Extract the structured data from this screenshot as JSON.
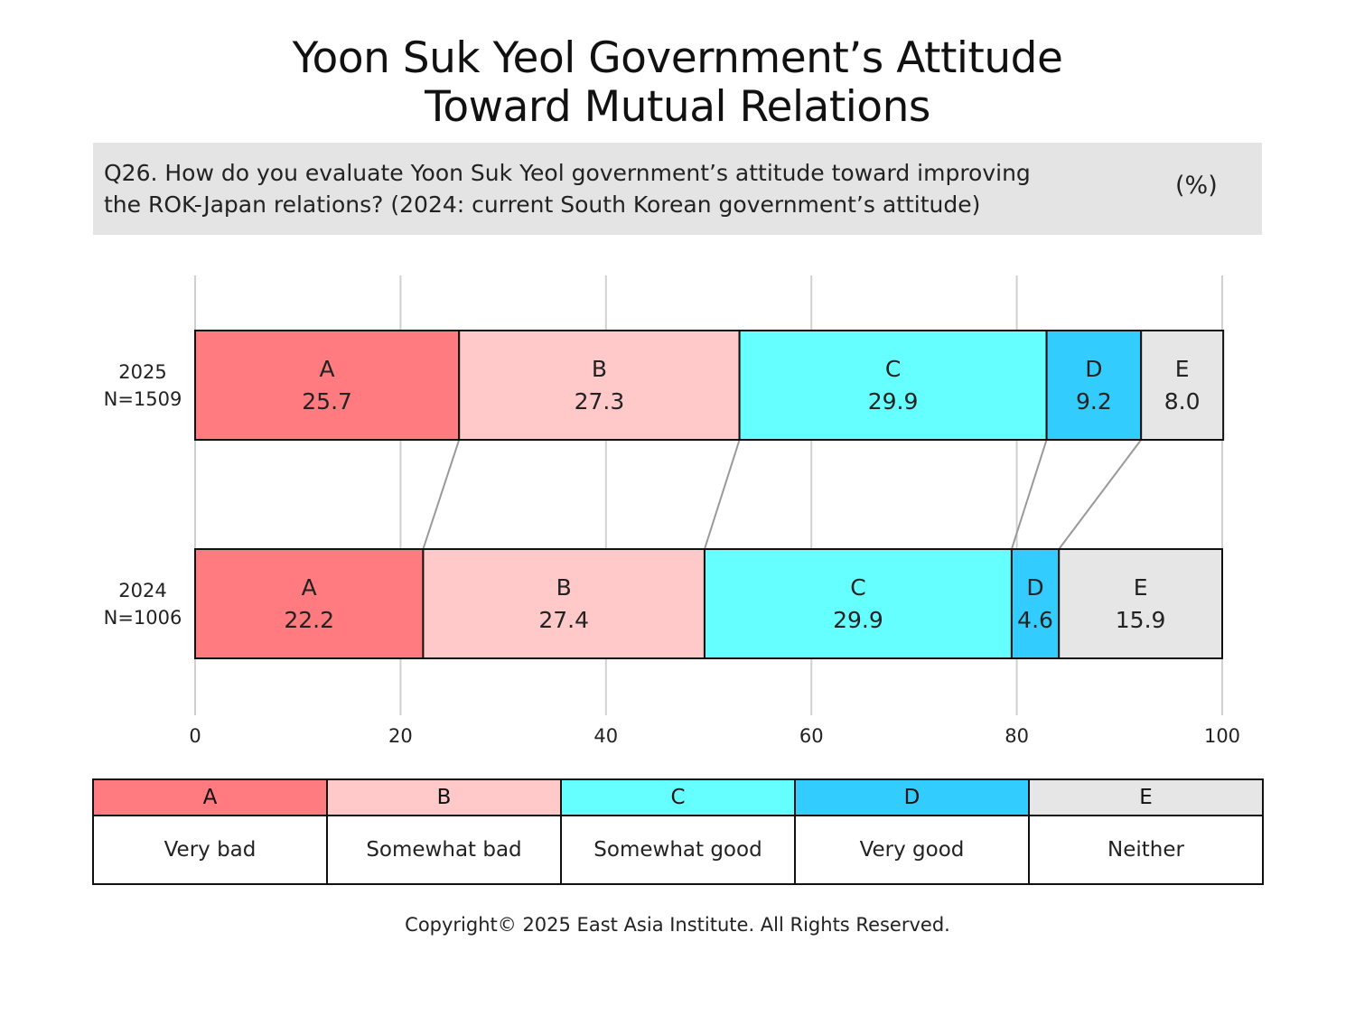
{
  "title": {
    "line1": "Yoon Suk Yeol Government’s Attitude",
    "line2": "Toward Mutual Relations"
  },
  "question": {
    "line1": "Q26. How do you evaluate Yoon Suk Yeol government’s attitude toward improving",
    "line2": "the ROK-Japan relations? (2024: current South Korean government’s attitude)",
    "unit": "(%)"
  },
  "colors": {
    "A": "#ff7b7f",
    "B": "#ffc8c9",
    "C": "#66ffff",
    "D": "#33ccff",
    "E": "#e6e6e6",
    "gridline": "#d0d0d0",
    "connector": "#999999",
    "border": "#111111"
  },
  "chart_data": {
    "type": "bar",
    "orientation": "horizontal",
    "stacked": true,
    "xlim": [
      0,
      100
    ],
    "xticks": [
      0,
      20,
      40,
      60,
      80,
      100
    ],
    "grid": true,
    "connectors": true,
    "categories": [
      {
        "line1": "2025",
        "line2": "N=1509"
      },
      {
        "line1": "2024",
        "line2": "N=1006"
      }
    ],
    "series": [
      {
        "name": "A",
        "values": [
          25.7,
          22.2
        ],
        "labels": [
          "25.7",
          "22.2"
        ]
      },
      {
        "name": "B",
        "values": [
          27.3,
          27.4
        ],
        "labels": [
          "27.3",
          "27.4"
        ]
      },
      {
        "name": "C",
        "values": [
          29.9,
          29.9
        ],
        "labels": [
          "29.9",
          "29.9"
        ]
      },
      {
        "name": "D",
        "values": [
          9.2,
          4.6
        ],
        "labels": [
          "9.2",
          "4.6"
        ]
      },
      {
        "name": "E",
        "values": [
          8.0,
          15.9
        ],
        "labels": [
          "8.0",
          "15.9"
        ]
      }
    ]
  },
  "legend": [
    {
      "code": "A",
      "label": "Very bad"
    },
    {
      "code": "B",
      "label": "Somewhat bad"
    },
    {
      "code": "C",
      "label": "Somewhat good"
    },
    {
      "code": "D",
      "label": "Very good"
    },
    {
      "code": "E",
      "label": "Neither"
    }
  ],
  "copyright": "Copyright© 2025 East Asia Institute. All Rights Reserved."
}
